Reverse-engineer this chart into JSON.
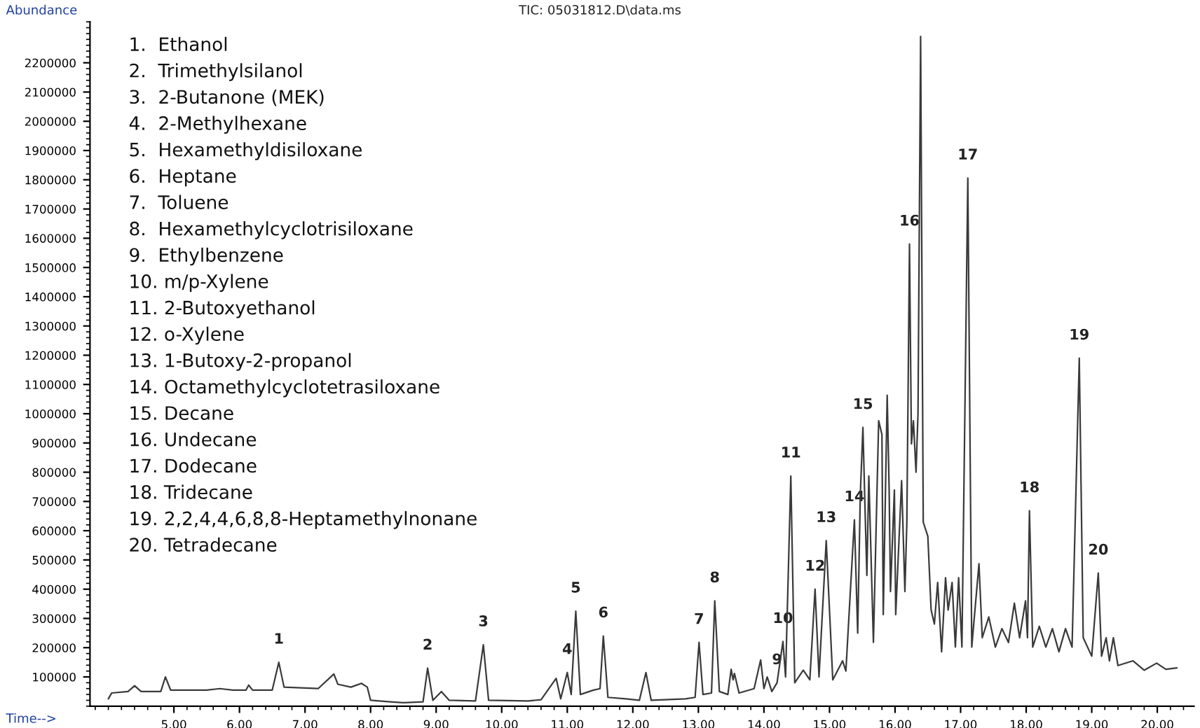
{
  "chart_data": {
    "type": "line",
    "title": "TIC: 05031812.D\\data.ms",
    "xlabel": "Time-->",
    "ylabel": "Abundance",
    "xlim": [
      3.72,
      20.56
    ],
    "ylim": [
      0,
      2340000
    ],
    "xticks": [
      {
        "value": 5,
        "label": "5.00"
      },
      {
        "value": 6,
        "label": "6.00"
      },
      {
        "value": 7,
        "label": "7.00"
      },
      {
        "value": 8,
        "label": "8.00"
      },
      {
        "value": 9,
        "label": "9.00"
      },
      {
        "value": 10,
        "label": "10.00"
      },
      {
        "value": 11,
        "label": "11.00"
      },
      {
        "value": 12,
        "label": "12.00"
      },
      {
        "value": 13,
        "label": "13.00"
      },
      {
        "value": 14,
        "label": "14.00"
      },
      {
        "value": 15,
        "label": "15.00"
      },
      {
        "value": 16,
        "label": "16.00"
      },
      {
        "value": 17,
        "label": "17.00"
      },
      {
        "value": 18,
        "label": "18.00"
      },
      {
        "value": 19,
        "label": "19.00"
      },
      {
        "value": 20,
        "label": "20.00"
      }
    ],
    "yticks": [
      100000,
      200000,
      300000,
      400000,
      500000,
      600000,
      700000,
      800000,
      900000,
      1000000,
      1100000,
      1200000,
      1300000,
      1400000,
      1500000,
      1600000,
      1700000,
      1800000,
      1900000,
      2000000,
      2100000,
      2200000
    ],
    "grid": false,
    "marker": "none",
    "line_style": "solid",
    "series": [
      {
        "color": "#3a3a3a",
        "x": [
          4.0,
          4.05,
          4.3,
          4.4,
          4.5,
          4.8,
          4.87,
          4.95,
          5.5,
          5.7,
          5.9,
          6.1,
          6.14,
          6.2,
          6.5,
          6.6,
          6.68,
          7.2,
          7.44,
          7.5,
          7.7,
          7.86,
          7.95,
          8.0,
          8.3,
          8.5,
          8.8,
          8.87,
          8.95,
          9.08,
          9.2,
          9.6,
          9.72,
          9.8,
          10.4,
          10.6,
          10.83,
          10.9,
          11.0,
          11.06,
          11.13,
          11.2,
          11.4,
          11.5,
          11.55,
          11.62,
          11.9,
          12.1,
          12.2,
          12.28,
          12.8,
          12.95,
          13.01,
          13.07,
          13.2,
          13.25,
          13.32,
          13.45,
          13.5,
          13.53,
          13.55,
          13.62,
          13.85,
          13.95,
          14.0,
          14.05,
          14.12,
          14.2,
          14.29,
          14.33,
          14.41,
          14.47,
          14.6,
          14.7,
          14.78,
          14.84,
          14.95,
          15.05,
          15.2,
          15.25,
          15.31,
          15.38,
          15.43,
          15.47,
          15.51,
          15.54,
          15.57,
          15.6,
          15.67,
          15.75,
          15.8,
          15.82,
          15.88,
          15.91,
          15.93,
          15.99,
          16.01,
          16.1,
          16.15,
          16.18,
          16.22,
          16.25,
          16.28,
          16.32,
          16.35,
          16.39,
          16.43,
          16.5,
          16.55,
          16.6,
          16.65,
          16.71,
          16.77,
          16.81,
          16.87,
          16.92,
          16.97,
          17.02,
          17.11,
          17.17,
          17.28,
          17.33,
          17.43,
          17.53,
          17.63,
          17.73,
          17.82,
          17.9,
          17.99,
          18.02,
          18.05,
          18.1,
          18.2,
          18.3,
          18.4,
          18.5,
          18.6,
          18.7,
          18.81,
          18.87,
          19.0,
          19.1,
          19.15,
          19.22,
          19.27,
          19.33,
          19.4,
          19.63,
          19.8,
          19.99,
          20.13,
          20.3
        ],
        "values": [
          25000,
          45000,
          50000,
          70000,
          50000,
          50000,
          100000,
          55000,
          55000,
          60000,
          55000,
          55000,
          72000,
          55000,
          55000,
          150000,
          65000,
          60000,
          110000,
          75000,
          65000,
          78000,
          65000,
          20000,
          15000,
          12000,
          15000,
          130000,
          20000,
          50000,
          20000,
          18000,
          210000,
          20000,
          18000,
          22000,
          95000,
          25000,
          115000,
          40000,
          325000,
          40000,
          55000,
          60000,
          240000,
          30000,
          25000,
          20000,
          115000,
          20000,
          25000,
          30000,
          218000,
          40000,
          45000,
          360000,
          50000,
          40000,
          126000,
          90000,
          112000,
          45000,
          60000,
          158000,
          60000,
          100000,
          50000,
          80000,
          221000,
          100000,
          787000,
          80000,
          123000,
          90000,
          400000,
          100000,
          566000,
          90000,
          155000,
          120000,
          360000,
          637000,
          250000,
          724000,
          953000,
          692000,
          447000,
          787000,
          218000,
          976000,
          929000,
          313000,
          1063000,
          739000,
          392000,
          739000,
          313000,
          771000,
          392000,
          629000,
          1580000,
          897000,
          976000,
          800000,
          1000000,
          2290000,
          629000,
          581000,
          329000,
          281000,
          423000,
          186000,
          439000,
          329000,
          423000,
          202000,
          439000,
          202000,
          1806000,
          202000,
          487000,
          234000,
          305000,
          202000,
          265000,
          218000,
          352000,
          234000,
          360000,
          234000,
          668000,
          202000,
          273000,
          202000,
          265000,
          186000,
          265000,
          202000,
          1190000,
          234000,
          171000,
          455000,
          171000,
          234000,
          155000,
          234000,
          139000,
          155000,
          123000,
          147000,
          126000,
          131000
        ]
      }
    ],
    "annotations": [
      "1.  Ethanol",
      "2.  Trimethylsilanol",
      "3.  2-Butanone (MEK)",
      "4.  2-Methylhexane",
      "5.  Hexamethyldisiloxane",
      "6.  Heptane",
      "7.  Toluene",
      "8.  Hexamethylcyclotrisiloxane",
      "9.  Ethylbenzene",
      "10. m/p-Xylene",
      "11. 2-Butoxyethanol",
      "12. o-Xylene",
      "13. 1-Butoxy-2-propanol",
      "14. Octamethylcyclotetrasiloxane",
      "15. Decane",
      "16. Undecane",
      "17. Dodecane",
      "18. Tridecane",
      "19. 2,2,4,4,6,8,8-Heptamethylnonane",
      "20. Tetradecane",
      {
        "text": "1",
        "x": 6.6,
        "y": 150000
      },
      {
        "text": "2",
        "x": 8.87,
        "y": 130000
      },
      {
        "text": "3",
        "x": 9.72,
        "y": 210000
      },
      {
        "text": "4",
        "x": 11.0,
        "y": 115000
      },
      {
        "text": "5",
        "x": 11.13,
        "y": 325000
      },
      {
        "text": "6",
        "x": 11.55,
        "y": 240000
      },
      {
        "text": "7",
        "x": 13.01,
        "y": 218000
      },
      {
        "text": "8",
        "x": 13.25,
        "y": 360000
      },
      {
        "text": "9",
        "x": 14.2,
        "y": 80000
      },
      {
        "text": "10",
        "x": 14.29,
        "y": 221000
      },
      {
        "text": "11",
        "x": 14.41,
        "y": 787000
      },
      {
        "text": "12",
        "x": 14.78,
        "y": 400000
      },
      {
        "text": "13",
        "x": 14.95,
        "y": 566000
      },
      {
        "text": "14",
        "x": 15.38,
        "y": 637000
      },
      {
        "text": "15",
        "x": 15.51,
        "y": 953000
      },
      {
        "text": "16",
        "x": 16.22,
        "y": 1580000
      },
      {
        "text": "17",
        "x": 17.11,
        "y": 1806000
      },
      {
        "text": "18",
        "x": 18.05,
        "y": 668000
      },
      {
        "text": "19",
        "x": 18.81,
        "y": 1190000
      },
      {
        "text": "20",
        "x": 19.1,
        "y": 455000
      }
    ]
  }
}
